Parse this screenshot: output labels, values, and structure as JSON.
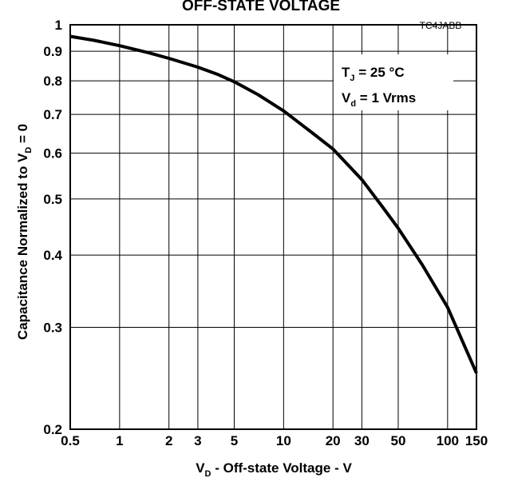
{
  "chart_data": {
    "type": "line",
    "title": "OFF-STATE VOLTAGE",
    "code": "TC4JABB",
    "xlabel": {
      "main": "V",
      "sub": "D",
      "rest": " - Off-state Voltage - V"
    },
    "ylabel": {
      "main": "Capacitance Normalized to V",
      "sub": "D",
      "rest": " = 0"
    },
    "x_scale": "log",
    "y_scale": "log",
    "xlim": [
      0.5,
      150
    ],
    "ylim": [
      0.2,
      1
    ],
    "grid": true,
    "x_ticks": [
      0.5,
      1,
      2,
      3,
      5,
      10,
      20,
      30,
      50,
      100,
      150
    ],
    "x_tick_labels": [
      "0.5",
      "1",
      "2",
      "3",
      "5",
      "10",
      "20",
      "30",
      "50",
      "100",
      "150"
    ],
    "y_ticks": [
      0.2,
      0.3,
      0.4,
      0.5,
      0.6,
      0.7,
      0.8,
      0.9,
      1
    ],
    "y_tick_labels": [
      "0.2",
      "0.3",
      "0.4",
      "0.5",
      "0.6",
      "0.7",
      "0.8",
      "0.9",
      "1"
    ],
    "annotation": {
      "line1": {
        "main": "T",
        "sub": "J",
        "rest": " = 25 °C"
      },
      "line2": {
        "main": "V",
        "sub": "d",
        "rest": " = 1 Vrms"
      }
    },
    "series": [
      {
        "x": [
          0.5,
          0.7,
          1,
          1.5,
          2,
          3,
          4,
          5,
          7,
          10,
          15,
          20,
          30,
          40,
          50,
          70,
          100,
          150
        ],
        "y": [
          0.955,
          0.94,
          0.92,
          0.895,
          0.875,
          0.845,
          0.82,
          0.797,
          0.757,
          0.71,
          0.65,
          0.61,
          0.54,
          0.485,
          0.445,
          0.385,
          0.325,
          0.25
        ]
      }
    ]
  }
}
